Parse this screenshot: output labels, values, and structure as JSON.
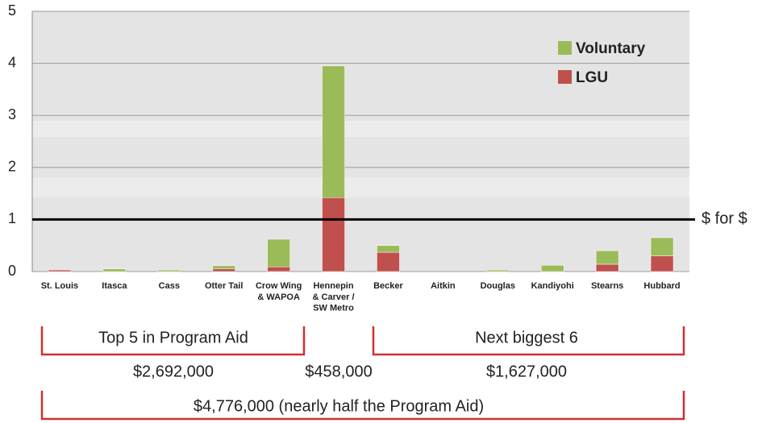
{
  "chart_data": {
    "type": "bar",
    "stacked": true,
    "categories": [
      "St. Louis",
      "Itasca",
      "Cass",
      "Otter Tail",
      "Crow Wing\n& WAPOA",
      "Hennepin\n& Carver /\nSW Metro",
      "Becker",
      "Aitkin",
      "Douglas",
      "Kandiyohi",
      "Stearns",
      "Hubbard"
    ],
    "series": [
      {
        "name": "LGU",
        "color": "#c0504d",
        "values": [
          0.03,
          0,
          0,
          0.05,
          0.09,
          1.42,
          0.37,
          0,
          0,
          0,
          0.14,
          0.3
        ]
      },
      {
        "name": "Voluntary",
        "color": "#9bbb59",
        "values": [
          0,
          0.05,
          0.03,
          0.06,
          0.53,
          2.53,
          0.13,
          0,
          0.03,
          0.12,
          0.26,
          0.35
        ]
      }
    ],
    "ylim": [
      0,
      5
    ],
    "yticks": [
      0,
      1,
      2,
      3,
      4,
      5
    ],
    "grid": true,
    "legend": "upper right",
    "reference_line": {
      "value": 1,
      "label": "$ for $"
    },
    "annotations": [
      "Top 5 in Program Aid",
      "Next biggest 6",
      "$2,692,000",
      "$458,000",
      "$1,627,000",
      "$4,776,000 (nearly half the Program Aid)"
    ]
  }
}
